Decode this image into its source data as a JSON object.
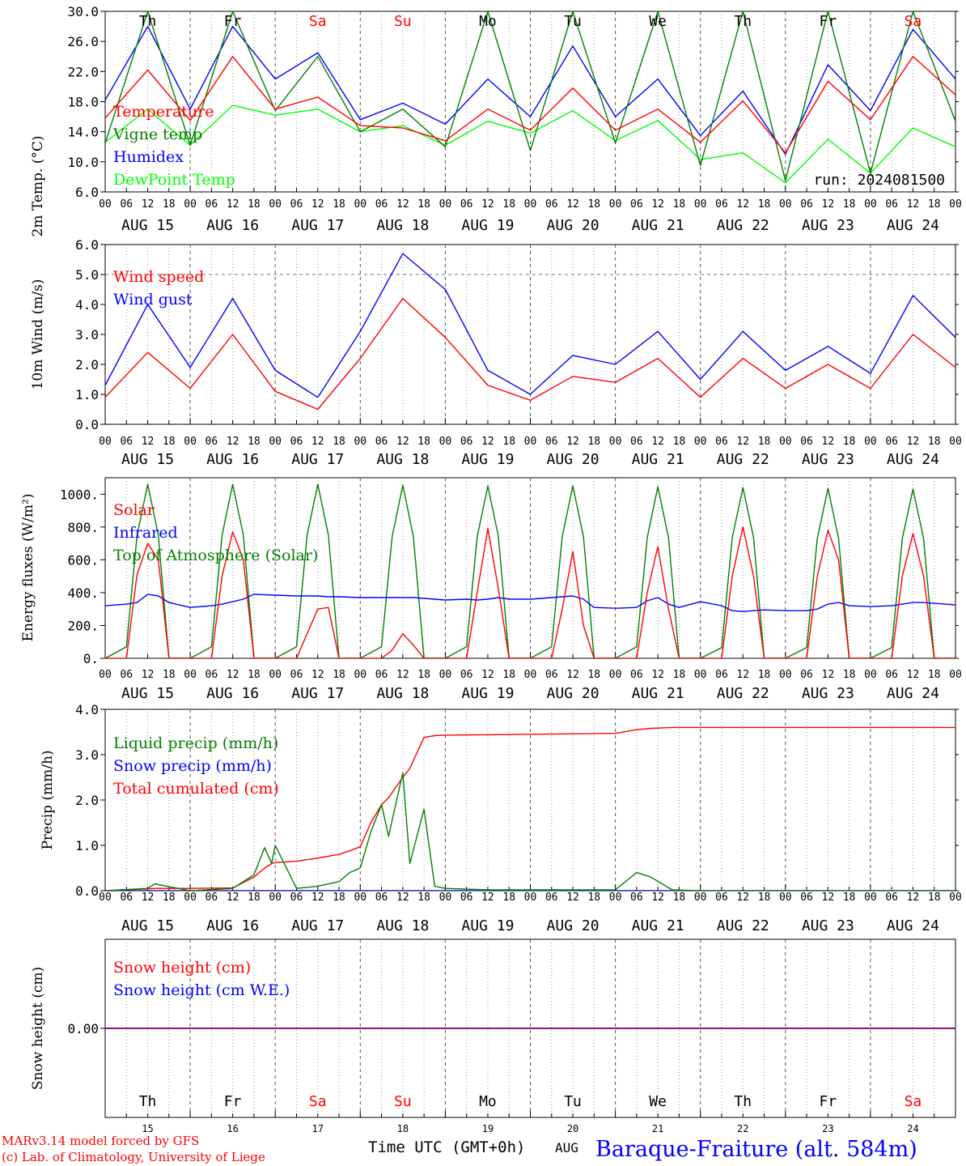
{
  "chart_data": [
    {
      "type": "line",
      "ylabel": "2m Temp. (°C)",
      "ylim": [
        6.0,
        30.0
      ],
      "yticks": [
        "30.0",
        "26.0",
        "22.0",
        "18.0",
        "14.0",
        "10.0",
        "6.0"
      ],
      "annotation": "run: 2024081500",
      "grid": "vertical dotted lines every 6 hours, dashed lines at day boundaries",
      "x": [
        0,
        12,
        24,
        36,
        48,
        60,
        72,
        84,
        96,
        108,
        120,
        132,
        144,
        156,
        168,
        180,
        192,
        204,
        216,
        228,
        240
      ],
      "series": [
        {
          "name": "Temperature",
          "color": "#ff0000",
          "values": [
            15.8,
            22.2,
            15.5,
            24.0,
            17.0,
            18.6,
            14.8,
            14.5,
            12.8,
            17.0,
            14.2,
            19.8,
            14.2,
            17.0,
            12.6,
            18.1,
            11.2,
            20.7,
            15.6,
            24.0,
            18.9
          ]
        },
        {
          "name": "Vigne temp",
          "color": "#008000",
          "values": [
            12.5,
            30.0,
            12.2,
            30.0,
            16.8,
            24.0,
            14.0,
            17.0,
            12.0,
            30.0,
            11.5,
            30.0,
            12.5,
            30.0,
            9.5,
            30.0,
            7.5,
            30.0,
            8.5,
            30.0,
            15.4
          ]
        },
        {
          "name": "Humidex",
          "color": "#0000ff",
          "values": [
            18.2,
            28.0,
            17.0,
            28.0,
            21.0,
            24.5,
            15.6,
            17.8,
            15.0,
            21.0,
            16.0,
            25.4,
            16.0,
            21.0,
            13.5,
            19.4,
            11.0,
            22.9,
            16.8,
            27.6,
            21.0
          ]
        },
        {
          "name": "DewPoint Temp",
          "color": "#00ff00",
          "values": [
            12.6,
            17.0,
            12.2,
            17.5,
            16.2,
            17.0,
            14.0,
            14.8,
            12.2,
            15.4,
            13.8,
            16.8,
            12.8,
            15.5,
            10.3,
            11.2,
            7.2,
            13.0,
            8.5,
            14.5,
            12.0
          ]
        }
      ]
    },
    {
      "type": "line",
      "ylabel": "10m Wind (m/s)",
      "ylim": [
        0.0,
        6.0
      ],
      "yticks": [
        "6.0",
        "5.0",
        "4.0",
        "3.0",
        "2.0",
        "1.0",
        "0.0"
      ],
      "x": [
        0,
        12,
        24,
        36,
        48,
        60,
        72,
        84,
        96,
        108,
        120,
        132,
        144,
        156,
        168,
        180,
        192,
        204,
        216,
        228,
        240
      ],
      "series": [
        {
          "name": "Wind speed",
          "color": "#ff0000",
          "values": [
            0.9,
            2.4,
            1.2,
            3.0,
            1.1,
            0.5,
            2.2,
            4.2,
            2.9,
            1.3,
            0.8,
            1.6,
            1.4,
            2.2,
            0.9,
            2.2,
            1.2,
            2.0,
            1.2,
            3.0,
            1.9
          ]
        },
        {
          "name": "Wind gust",
          "color": "#0000ff",
          "values": [
            1.3,
            4.0,
            1.9,
            4.2,
            1.8,
            0.9,
            3.1,
            5.7,
            4.5,
            1.8,
            1.0,
            2.3,
            2.0,
            3.1,
            1.5,
            3.1,
            1.8,
            2.6,
            1.7,
            4.3,
            2.9
          ]
        }
      ]
    },
    {
      "type": "line",
      "ylabel": "Energy fluxes (W/m²)",
      "ylim": [
        0,
        1100
      ],
      "yticks": [
        "1000.",
        "800.",
        "600.",
        "400.",
        "200.",
        "0."
      ],
      "x": [
        0,
        6,
        9,
        12,
        15,
        18,
        24,
        30,
        33,
        36,
        39,
        42,
        48,
        54,
        57,
        60,
        63,
        66,
        72,
        78,
        81,
        84,
        87,
        90,
        96,
        102,
        105,
        108,
        111,
        114,
        120,
        126,
        129,
        132,
        135,
        138,
        144,
        150,
        153,
        156,
        159,
        162,
        168,
        174,
        177,
        180,
        183,
        186,
        192,
        198,
        201,
        204,
        207,
        210,
        216,
        222,
        225,
        228,
        231,
        234,
        240
      ],
      "series": [
        {
          "name": "Solar",
          "color": "#ff0000",
          "values": [
            0,
            0,
            510,
            700,
            600,
            0,
            0,
            0,
            500,
            770,
            600,
            0,
            0,
            0,
            150,
            300,
            310,
            0,
            0,
            0,
            50,
            150,
            80,
            0,
            0,
            0,
            400,
            790,
            420,
            0,
            0,
            0,
            300,
            650,
            200,
            0,
            0,
            0,
            400,
            680,
            300,
            0,
            0,
            0,
            500,
            800,
            500,
            0,
            0,
            0,
            500,
            780,
            600,
            0,
            0,
            0,
            500,
            760,
            500,
            0,
            0
          ]
        },
        {
          "name": "Infrared",
          "color": "#0000ff",
          "values": [
            320,
            330,
            340,
            390,
            380,
            340,
            310,
            320,
            330,
            345,
            360,
            390,
            385,
            380,
            380,
            380,
            375,
            375,
            370,
            370,
            370,
            370,
            370,
            365,
            355,
            360,
            355,
            360,
            370,
            360,
            360,
            370,
            375,
            380,
            360,
            310,
            305,
            310,
            350,
            370,
            330,
            310,
            345,
            320,
            290,
            285,
            290,
            295,
            290,
            290,
            300,
            330,
            340,
            320,
            315,
            320,
            330,
            340,
            340,
            335,
            325
          ]
        },
        {
          "name": "Top of Atmosphere (Solar)",
          "color": "#008000",
          "values": [
            0,
            70,
            750,
            1060,
            750,
            0,
            0,
            70,
            750,
            1060,
            750,
            0,
            0,
            70,
            750,
            1060,
            750,
            0,
            0,
            70,
            740,
            1055,
            740,
            0,
            0,
            70,
            740,
            1050,
            740,
            0,
            0,
            70,
            740,
            1050,
            740,
            0,
            0,
            70,
            735,
            1045,
            735,
            0,
            0,
            65,
            735,
            1040,
            735,
            0,
            0,
            65,
            730,
            1035,
            730,
            0,
            0,
            65,
            730,
            1030,
            730,
            0,
            0
          ]
        }
      ]
    },
    {
      "type": "line",
      "ylabel": "Precip (mm/h)",
      "ylim": [
        0.0,
        4.0
      ],
      "yticks": [
        "4.0",
        "3.0",
        "2.0",
        "1.0",
        "0.0"
      ],
      "x": [
        0,
        12,
        14,
        24,
        36,
        42,
        45,
        47,
        48,
        54,
        60,
        66,
        69,
        72,
        75,
        78,
        80,
        84,
        86,
        90,
        93,
        96,
        108,
        120,
        144,
        150,
        154,
        160,
        168,
        192,
        216,
        240
      ],
      "series": [
        {
          "name": "Liquid precip (mm/h)",
          "color": "#008000",
          "values": [
            0,
            0.05,
            0.15,
            0,
            0.05,
            0.35,
            0.95,
            0.6,
            1.0,
            0.05,
            0.1,
            0.2,
            0.4,
            0.5,
            1.3,
            1.9,
            1.2,
            2.6,
            0.6,
            1.8,
            0.1,
            0.05,
            0.02,
            0.02,
            0.02,
            0.4,
            0.3,
            0.02,
            0,
            0,
            0,
            0
          ]
        },
        {
          "name": "Snow precip (mm/h)",
          "color": "#0000ff",
          "values": [
            0,
            0,
            0,
            0,
            0,
            0,
            0,
            0,
            0,
            0,
            0,
            0,
            0,
            0,
            0,
            0,
            0,
            0,
            0,
            0,
            0,
            0,
            0,
            0,
            0,
            0,
            0,
            0,
            0,
            0,
            0,
            0
          ]
        },
        {
          "name": "Total cumulated (cm)",
          "color": "#ff0000",
          "values": [
            0,
            0.04,
            0.05,
            0.05,
            0.06,
            0.3,
            0.5,
            0.6,
            0.62,
            0.65,
            0.72,
            0.8,
            0.88,
            0.97,
            1.5,
            1.9,
            2.05,
            2.5,
            2.7,
            3.38,
            3.42,
            3.43,
            3.44,
            3.45,
            3.47,
            3.55,
            3.58,
            3.6,
            3.6,
            3.6,
            3.6,
            3.6
          ]
        }
      ]
    },
    {
      "type": "line",
      "ylabel": "Snow height (cm)",
      "ytick": "0.00",
      "x": [
        0,
        240
      ],
      "series": [
        {
          "name": "Snow height (cm)",
          "color": "#ff0000",
          "values": [
            0,
            0
          ]
        },
        {
          "name": "Snow height (cm W.E.)",
          "color": "#0000ff",
          "values": [
            0,
            0
          ]
        }
      ]
    }
  ],
  "weekdays": [
    "Th",
    "Fr",
    "Sa",
    "Su",
    "Mo",
    "Tu",
    "We",
    "Th",
    "Fr",
    "Sa"
  ],
  "weekday_colors": [
    "#000000",
    "#000000",
    "#ff0000",
    "#ff0000",
    "#000000",
    "#000000",
    "#000000",
    "#000000",
    "#000000",
    "#ff0000"
  ],
  "date_labels": [
    "AUG 15",
    "AUG 16",
    "AUG 17",
    "AUG 18",
    "AUG 19",
    "AUG 20",
    "AUG 21",
    "AUG 22",
    "AUG 23",
    "AUG 24"
  ],
  "hour_ticks": [
    "00",
    "06",
    "12",
    "18"
  ],
  "hour_tick_end": "00",
  "day_numbers": [
    "15",
    "16",
    "17",
    "18",
    "19",
    "20",
    "21",
    "22",
    "23",
    "24"
  ],
  "footer": {
    "model_line": "MARv3.14 model forced by GFS",
    "credit_line": "(c) Lab. of Climatology, University of Liege",
    "time_axis": "Time UTC (GMT+0h)",
    "month": "AUG",
    "station": "Baraque-Fraiture (alt. 584m)"
  }
}
